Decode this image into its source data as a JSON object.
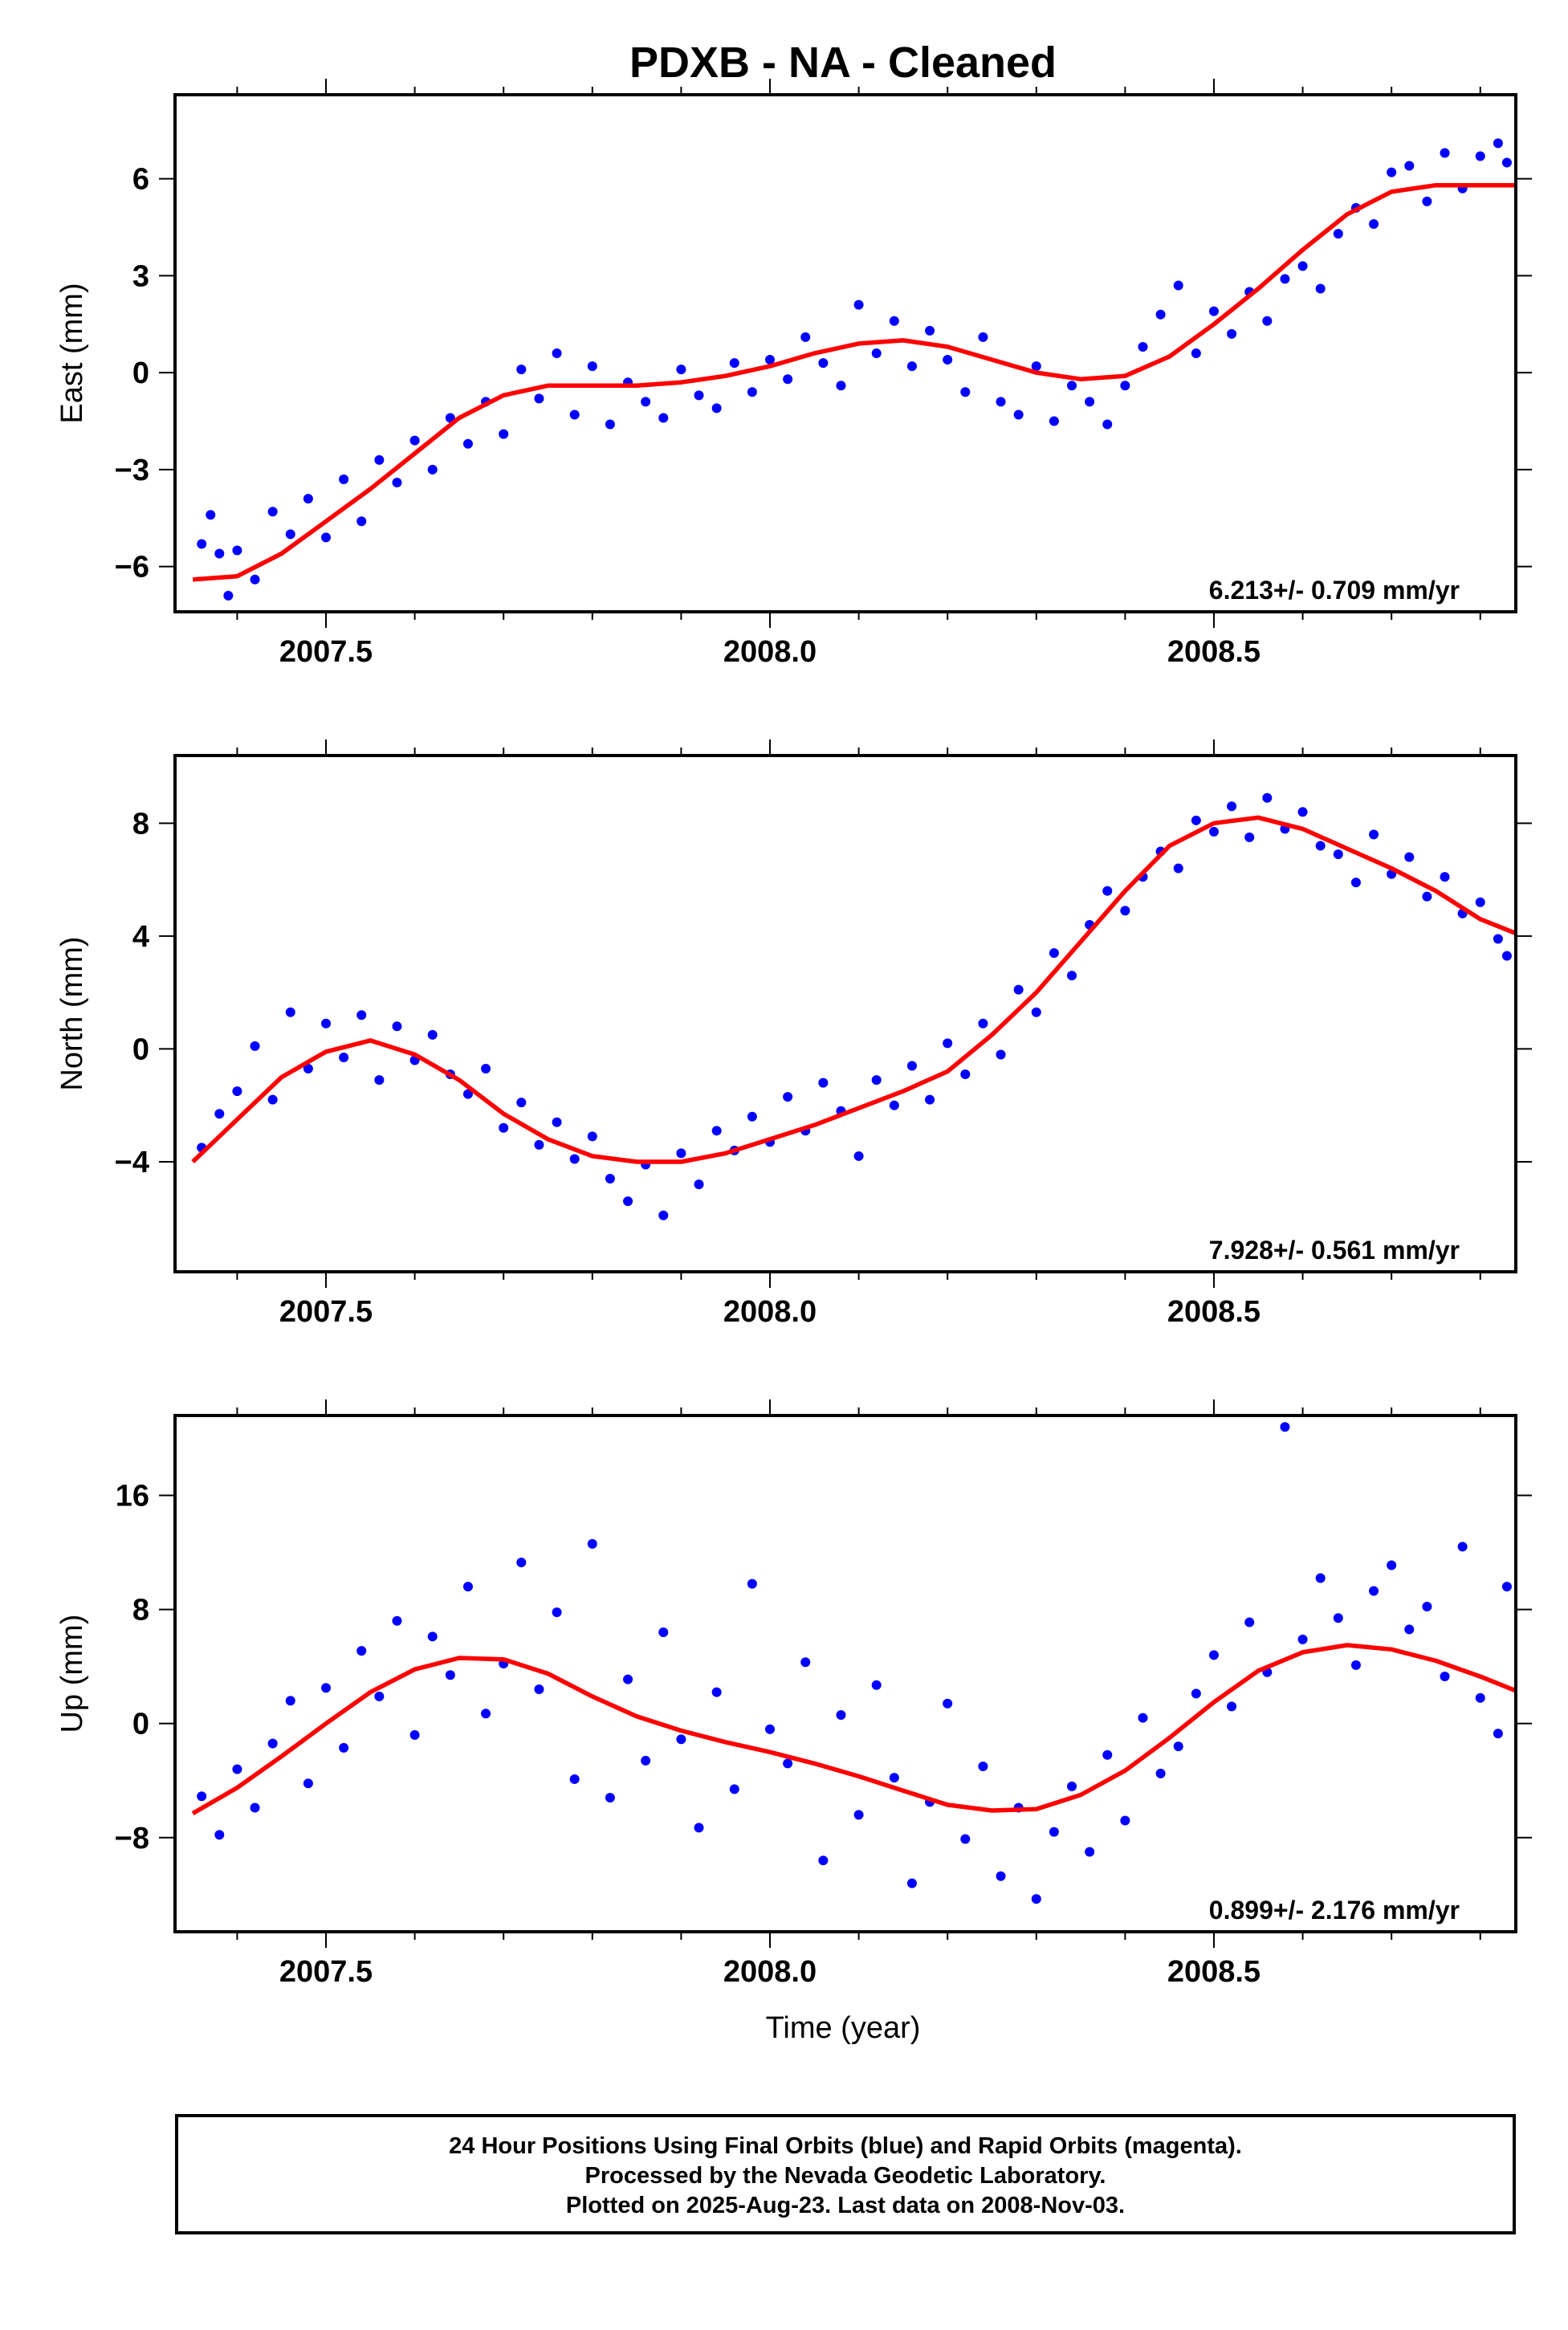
{
  "title": "PDXB  - NA - Cleaned",
  "xlabel": "Time (year)",
  "footer": {
    "line1": "24 Hour Positions Using Final Orbits (blue) and Rapid Orbits (magenta).",
    "line2": "Processed by the Nevada Geodetic Laboratory.",
    "line3": "Plotted on 2025-Aug-23. Last data on 2008-Nov-03."
  },
  "colors": {
    "points": "#0000ff",
    "fit": "#ff0000",
    "frame": "#000000"
  },
  "chart_data": [
    {
      "type": "scatter",
      "ylabel": "East (mm)",
      "annotation": "6.213+/- 0.709 mm/yr",
      "xlim": [
        2007.33,
        2008.84
      ],
      "ylim": [
        -7.4,
        8.6
      ],
      "yticks": [
        -6,
        -3,
        0,
        3,
        6
      ],
      "xticks": [
        2007.5,
        2008.0,
        2008.5
      ],
      "fit": {
        "x": [
          2007.35,
          2007.4,
          2007.45,
          2007.5,
          2007.55,
          2007.6,
          2007.65,
          2007.7,
          2007.75,
          2007.8,
          2007.85,
          2007.9,
          2007.95,
          2008.0,
          2008.05,
          2008.1,
          2008.15,
          2008.2,
          2008.25,
          2008.3,
          2008.35,
          2008.4,
          2008.45,
          2008.5,
          2008.55,
          2008.6,
          2008.65,
          2008.7,
          2008.75,
          2008.8,
          2008.84
        ],
        "y": [
          -6.4,
          -6.3,
          -5.6,
          -4.6,
          -3.6,
          -2.5,
          -1.4,
          -0.7,
          -0.4,
          -0.4,
          -0.4,
          -0.3,
          -0.1,
          0.2,
          0.6,
          0.9,
          1.0,
          0.8,
          0.4,
          0.0,
          -0.2,
          -0.1,
          0.5,
          1.5,
          2.6,
          3.8,
          4.9,
          5.6,
          5.8,
          5.8,
          5.8
        ]
      },
      "points": {
        "x": [
          2007.36,
          2007.37,
          2007.38,
          2007.39,
          2007.4,
          2007.42,
          2007.44,
          2007.46,
          2007.48,
          2007.5,
          2007.52,
          2007.54,
          2007.56,
          2007.58,
          2007.6,
          2007.62,
          2007.64,
          2007.66,
          2007.68,
          2007.7,
          2007.72,
          2007.74,
          2007.76,
          2007.78,
          2007.8,
          2007.82,
          2007.84,
          2007.86,
          2007.88,
          2007.9,
          2007.92,
          2007.94,
          2007.96,
          2007.98,
          2008.0,
          2008.02,
          2008.04,
          2008.06,
          2008.08,
          2008.1,
          2008.12,
          2008.14,
          2008.16,
          2008.18,
          2008.2,
          2008.22,
          2008.24,
          2008.26,
          2008.28,
          2008.3,
          2008.32,
          2008.34,
          2008.36,
          2008.38,
          2008.4,
          2008.42,
          2008.44,
          2008.46,
          2008.48,
          2008.5,
          2008.52,
          2008.54,
          2008.56,
          2008.58,
          2008.6,
          2008.62,
          2008.64,
          2008.66,
          2008.68,
          2008.7,
          2008.72,
          2008.74,
          2008.76,
          2008.78,
          2008.8,
          2008.82,
          2008.83
        ],
        "y": [
          -5.3,
          -4.4,
          -5.6,
          -6.9,
          -5.5,
          -6.4,
          -4.3,
          -5.0,
          -3.9,
          -5.1,
          -3.3,
          -4.6,
          -2.7,
          -3.4,
          -2.1,
          -3.0,
          -1.4,
          -2.2,
          -0.9,
          -1.9,
          0.1,
          -0.8,
          0.6,
          -1.3,
          0.2,
          -1.6,
          -0.3,
          -0.9,
          -1.4,
          0.1,
          -0.7,
          -1.1,
          0.3,
          -0.6,
          0.4,
          -0.2,
          1.1,
          0.3,
          -0.4,
          2.1,
          0.6,
          1.6,
          0.2,
          1.3,
          0.4,
          -0.6,
          1.1,
          -0.9,
          -1.3,
          0.2,
          -1.5,
          -0.4,
          -0.9,
          -1.6,
          -0.4,
          0.8,
          1.8,
          2.7,
          0.6,
          1.9,
          1.2,
          2.5,
          1.6,
          2.9,
          3.3,
          2.6,
          4.3,
          5.1,
          4.6,
          6.2,
          6.4,
          5.3,
          6.8,
          5.7,
          6.7,
          7.1,
          6.5
        ]
      }
    },
    {
      "type": "scatter",
      "ylabel": "North (mm)",
      "annotation": "7.928+/- 0.561 mm/yr",
      "xlim": [
        2007.33,
        2008.84
      ],
      "ylim": [
        -7.9,
        10.4
      ],
      "yticks": [
        -4,
        0,
        4,
        8
      ],
      "xticks": [
        2007.5,
        2008.0,
        2008.5
      ],
      "fit": {
        "x": [
          2007.35,
          2007.4,
          2007.45,
          2007.5,
          2007.55,
          2007.6,
          2007.65,
          2007.7,
          2007.75,
          2007.8,
          2007.85,
          2007.9,
          2007.95,
          2008.0,
          2008.05,
          2008.1,
          2008.15,
          2008.2,
          2008.25,
          2008.3,
          2008.35,
          2008.4,
          2008.45,
          2008.5,
          2008.55,
          2008.6,
          2008.65,
          2008.7,
          2008.75,
          2008.8,
          2008.84
        ],
        "y": [
          -4.0,
          -2.5,
          -1.0,
          -0.1,
          0.3,
          -0.2,
          -1.1,
          -2.3,
          -3.2,
          -3.8,
          -4.0,
          -4.0,
          -3.7,
          -3.2,
          -2.7,
          -2.1,
          -1.5,
          -0.8,
          0.5,
          2.0,
          3.8,
          5.6,
          7.2,
          8.0,
          8.2,
          7.8,
          7.1,
          6.4,
          5.6,
          4.6,
          4.1
        ]
      },
      "points": {
        "x": [
          2007.36,
          2007.38,
          2007.4,
          2007.42,
          2007.44,
          2007.46,
          2007.48,
          2007.5,
          2007.52,
          2007.54,
          2007.56,
          2007.58,
          2007.6,
          2007.62,
          2007.64,
          2007.66,
          2007.68,
          2007.7,
          2007.72,
          2007.74,
          2007.76,
          2007.78,
          2007.8,
          2007.82,
          2007.84,
          2007.86,
          2007.88,
          2007.9,
          2007.92,
          2007.94,
          2007.96,
          2007.98,
          2008.0,
          2008.02,
          2008.04,
          2008.06,
          2008.08,
          2008.1,
          2008.12,
          2008.14,
          2008.16,
          2008.18,
          2008.2,
          2008.22,
          2008.24,
          2008.26,
          2008.28,
          2008.3,
          2008.32,
          2008.34,
          2008.36,
          2008.38,
          2008.4,
          2008.42,
          2008.44,
          2008.46,
          2008.48,
          2008.5,
          2008.52,
          2008.54,
          2008.56,
          2008.58,
          2008.6,
          2008.62,
          2008.64,
          2008.66,
          2008.68,
          2008.7,
          2008.72,
          2008.74,
          2008.76,
          2008.78,
          2008.8,
          2008.82,
          2008.83
        ],
        "y": [
          -3.5,
          -2.3,
          -1.5,
          0.1,
          -1.8,
          1.3,
          -0.7,
          0.9,
          -0.3,
          1.2,
          -1.1,
          0.8,
          -0.4,
          0.5,
          -0.9,
          -1.6,
          -0.7,
          -2.8,
          -1.9,
          -3.4,
          -2.6,
          -3.9,
          -3.1,
          -4.6,
          -5.4,
          -4.1,
          -5.9,
          -3.7,
          -4.8,
          -2.9,
          -3.6,
          -2.4,
          -3.3,
          -1.7,
          -2.9,
          -1.2,
          -2.2,
          -3.8,
          -1.1,
          -2.0,
          -0.6,
          -1.8,
          0.2,
          -0.9,
          0.9,
          -0.2,
          2.1,
          1.3,
          3.4,
          2.6,
          4.4,
          5.6,
          4.9,
          6.1,
          7.0,
          6.4,
          8.1,
          7.7,
          8.6,
          7.5,
          8.9,
          7.8,
          8.4,
          7.2,
          6.9,
          5.9,
          7.6,
          6.2,
          6.8,
          5.4,
          6.1,
          4.8,
          5.2,
          3.9,
          3.3
        ]
      }
    },
    {
      "type": "scatter",
      "ylabel": "Up (mm)",
      "annotation": "0.899+/- 2.176 mm/yr",
      "xlim": [
        2007.33,
        2008.84
      ],
      "ylim": [
        -14.6,
        21.6
      ],
      "yticks": [
        -8,
        0,
        8,
        16
      ],
      "xticks": [
        2007.5,
        2008.0,
        2008.5
      ],
      "fit": {
        "x": [
          2007.35,
          2007.4,
          2007.45,
          2007.5,
          2007.55,
          2007.6,
          2007.65,
          2007.7,
          2007.75,
          2007.8,
          2007.85,
          2007.9,
          2007.95,
          2008.0,
          2008.05,
          2008.1,
          2008.15,
          2008.2,
          2008.25,
          2008.3,
          2008.35,
          2008.4,
          2008.45,
          2008.5,
          2008.55,
          2008.6,
          2008.65,
          2008.7,
          2008.75,
          2008.8,
          2008.84
        ],
        "y": [
          -6.3,
          -4.5,
          -2.3,
          0.0,
          2.2,
          3.8,
          4.6,
          4.5,
          3.5,
          1.9,
          0.5,
          -0.5,
          -1.3,
          -2.0,
          -2.8,
          -3.7,
          -4.7,
          -5.7,
          -6.1,
          -6.0,
          -5.0,
          -3.3,
          -1.0,
          1.5,
          3.7,
          5.0,
          5.5,
          5.2,
          4.4,
          3.3,
          2.3
        ]
      },
      "points": {
        "x": [
          2007.36,
          2007.38,
          2007.4,
          2007.42,
          2007.44,
          2007.46,
          2007.48,
          2007.5,
          2007.52,
          2007.54,
          2007.56,
          2007.58,
          2007.6,
          2007.62,
          2007.64,
          2007.66,
          2007.68,
          2007.7,
          2007.72,
          2007.74,
          2007.76,
          2007.78,
          2007.8,
          2007.82,
          2007.84,
          2007.86,
          2007.88,
          2007.9,
          2007.92,
          2007.94,
          2007.96,
          2007.98,
          2008.0,
          2008.02,
          2008.04,
          2008.06,
          2008.08,
          2008.1,
          2008.12,
          2008.14,
          2008.16,
          2008.18,
          2008.2,
          2008.22,
          2008.24,
          2008.26,
          2008.28,
          2008.3,
          2008.32,
          2008.34,
          2008.36,
          2008.38,
          2008.4,
          2008.42,
          2008.44,
          2008.46,
          2008.48,
          2008.5,
          2008.52,
          2008.54,
          2008.56,
          2008.58,
          2008.6,
          2008.62,
          2008.64,
          2008.66,
          2008.68,
          2008.7,
          2008.72,
          2008.74,
          2008.76,
          2008.78,
          2008.8,
          2008.82,
          2008.83
        ],
        "y": [
          -5.1,
          -7.8,
          -3.2,
          -5.9,
          -1.4,
          1.6,
          -4.2,
          2.5,
          -1.7,
          5.1,
          1.9,
          7.2,
          -0.8,
          6.1,
          3.4,
          9.6,
          0.7,
          4.2,
          11.3,
          2.4,
          7.8,
          -3.9,
          12.6,
          -5.2,
          3.1,
          -2.6,
          6.4,
          -1.1,
          -7.3,
          2.2,
          -4.6,
          9.8,
          -0.4,
          -2.8,
          4.3,
          -9.6,
          0.6,
          -6.4,
          2.7,
          -3.8,
          -11.2,
          -5.5,
          1.4,
          -8.1,
          -3.0,
          -10.7,
          -5.9,
          -12.3,
          -7.6,
          -4.4,
          -9.0,
          -2.2,
          -6.8,
          0.4,
          -3.5,
          -1.6,
          2.1,
          4.8,
          1.2,
          7.1,
          3.6,
          20.8,
          5.9,
          10.2,
          7.4,
          4.1,
          9.3,
          11.1,
          6.6,
          8.2,
          3.3,
          12.4,
          1.8,
          -0.7,
          9.6
        ]
      }
    }
  ]
}
